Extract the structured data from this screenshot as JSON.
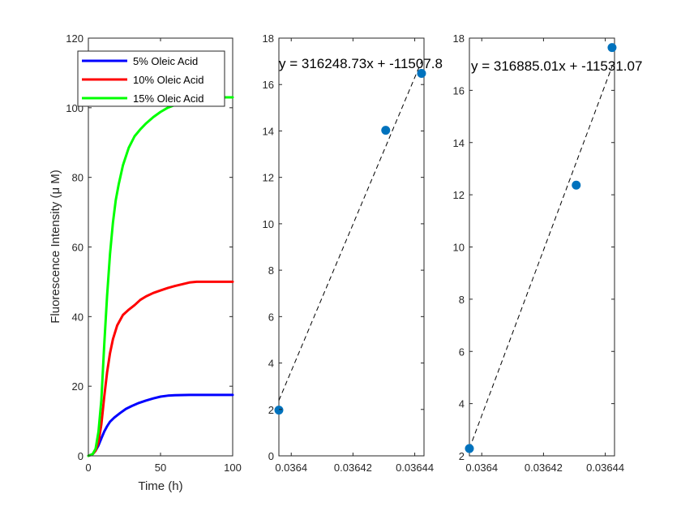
{
  "chart_data": [
    {
      "type": "line",
      "xlabel": "Time (h)",
      "ylabel": "Fluorescence Intensity (μ M)",
      "xlim": [
        0,
        100
      ],
      "ylim": [
        0,
        120
      ],
      "xticks": [
        0,
        50,
        100
      ],
      "yticks": [
        0,
        20,
        40,
        60,
        80,
        100,
        120
      ],
      "grid": false,
      "legend": "top-right",
      "series": [
        {
          "name": "5% Oleic Acid",
          "color": "#0000ff",
          "x": [
            0,
            3,
            5,
            7,
            9,
            11,
            13,
            15,
            18,
            22,
            26,
            30,
            35,
            40,
            45,
            50,
            55,
            60,
            70,
            80,
            90,
            100
          ],
          "y": [
            0,
            0.5,
            1.5,
            3,
            5,
            7,
            8.5,
            9.8,
            11,
            12.3,
            13.5,
            14.3,
            15.2,
            15.9,
            16.5,
            17.0,
            17.3,
            17.4,
            17.5,
            17.5,
            17.5,
            17.5
          ]
        },
        {
          "name": "10% Oleic Acid",
          "color": "#ff0000",
          "x": [
            0,
            3,
            5,
            7,
            9,
            11,
            13,
            15,
            17,
            20,
            24,
            28,
            32,
            36,
            40,
            45,
            50,
            55,
            60,
            65,
            70,
            75,
            80,
            90,
            100
          ],
          "y": [
            0,
            0.5,
            1.5,
            4,
            9,
            17,
            24,
            29.5,
            33.5,
            37.5,
            40.5,
            42,
            43.3,
            44.8,
            45.8,
            46.8,
            47.5,
            48.2,
            48.8,
            49.3,
            49.8,
            50,
            50,
            50,
            50
          ]
        },
        {
          "name": "15% Oleic Acid",
          "color": "#00ff00",
          "x": [
            0,
            3,
            5,
            7,
            9,
            11,
            13,
            15,
            17,
            19,
            21,
            24,
            28,
            32,
            36,
            40,
            45,
            50,
            55,
            60,
            65,
            70,
            75,
            80,
            85,
            90,
            100
          ],
          "y": [
            0,
            0.5,
            2,
            7,
            16,
            32,
            46,
            58,
            67,
            73.5,
            78,
            83.5,
            88.5,
            91.8,
            93.8,
            95.5,
            97.3,
            98.8,
            100,
            100.8,
            101.5,
            102,
            102.3,
            102.6,
            102.8,
            103,
            103
          ]
        }
      ]
    },
    {
      "type": "scatter",
      "annotation": "y = 316248.73x + -11507.8",
      "xlim": [
        0.036396,
        0.036443
      ],
      "ylim": [
        0,
        18
      ],
      "xticks": [
        0.0364,
        0.03642,
        0.03644
      ],
      "xtick_labels": [
        "0.0364",
        "0.03642",
        "0.03644"
      ],
      "yticks": [
        0,
        2,
        4,
        6,
        8,
        10,
        12,
        14,
        16,
        18
      ],
      "grid": false,
      "points_x": [
        0.036396,
        0.0364306,
        0.0364422
      ],
      "points_y": [
        1.97,
        14.03,
        16.48
      ],
      "fit": {
        "slope": 316248.73,
        "intercept": -11507.8
      },
      "point_color": "#0072bd"
    },
    {
      "type": "scatter",
      "annotation": "y = 316885.01x + -11531.07",
      "xlim": [
        0.036396,
        0.036443
      ],
      "ylim": [
        2,
        18
      ],
      "xticks": [
        0.0364,
        0.03642,
        0.03644
      ],
      "xtick_labels": [
        "0.0364",
        "0.03642",
        "0.03644"
      ],
      "yticks": [
        2,
        4,
        6,
        8,
        10,
        12,
        14,
        16,
        18
      ],
      "grid": false,
      "points_x": [
        0.036396,
        0.0364306,
        0.0364422
      ],
      "points_y": [
        2.28,
        12.37,
        17.64
      ],
      "fit": {
        "slope": 316885.01,
        "intercept": -11531.07
      },
      "point_color": "#0072bd"
    }
  ]
}
